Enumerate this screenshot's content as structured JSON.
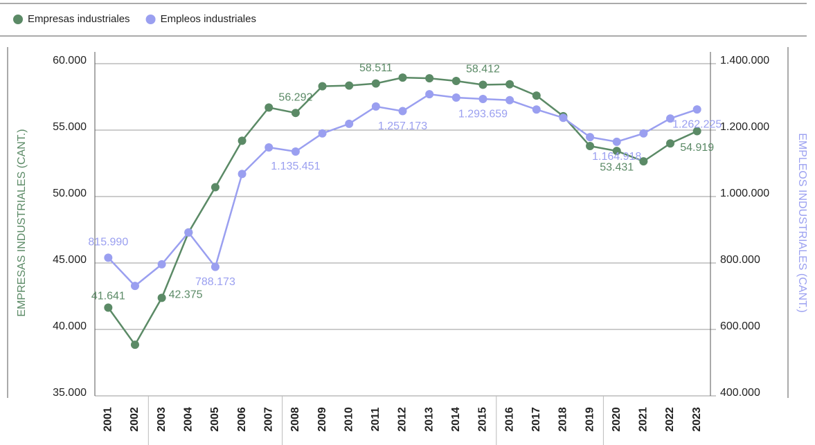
{
  "chart_data": {
    "type": "line",
    "categories": [
      "2001",
      "2002",
      "2003",
      "2004",
      "2005",
      "2006",
      "2007",
      "2008",
      "2009",
      "2010",
      "2011",
      "2012",
      "2013",
      "2014",
      "2015",
      "2016",
      "2017",
      "2018",
      "2019",
      "2020",
      "2021",
      "2022",
      "2023"
    ],
    "ylabel": "EMPRESAS INDUSTRIALES (CANT.)",
    "y2label": "EMPLEOS INDUSTRIALES (CANT.)",
    "ylim": [
      35000,
      60000
    ],
    "yticks": [
      {
        "value": 35000,
        "label": "35.000"
      },
      {
        "value": 40000,
        "label": "40.000"
      },
      {
        "value": 45000,
        "label": "45.000"
      },
      {
        "value": 50000,
        "label": "50.000"
      },
      {
        "value": 55000,
        "label": "55.000"
      },
      {
        "value": 60000,
        "label": "60.000"
      }
    ],
    "y2lim": [
      400000,
      1400000
    ],
    "y2ticks": [
      {
        "value": 400000,
        "label": "400.000"
      },
      {
        "value": 600000,
        "label": "600.000"
      },
      {
        "value": 800000,
        "label": "800.000"
      },
      {
        "value": 1000000,
        "label": "1.000.000"
      },
      {
        "value": 1200000,
        "label": "1.200.000"
      },
      {
        "value": 1400000,
        "label": "1.400.000"
      }
    ],
    "grid": true,
    "legend": "top-left",
    "series": [
      {
        "name": "Empresas industriales",
        "color": "#5b8a66",
        "axis": "y",
        "values": [
          41641,
          38850,
          42375,
          47300,
          50700,
          54200,
          56700,
          56292,
          58300,
          58350,
          58511,
          58950,
          58900,
          58700,
          58412,
          58450,
          57600,
          56050,
          53800,
          53431,
          52650,
          54000,
          54919
        ],
        "value_labels": [
          "41.641",
          null,
          "42.375",
          null,
          null,
          null,
          null,
          "56.292",
          null,
          null,
          "58.511",
          null,
          null,
          null,
          "58.412",
          null,
          null,
          null,
          null,
          "53.431",
          null,
          null,
          "54.919"
        ]
      },
      {
        "name": "Empleos industriales",
        "color": "#9a9ff0",
        "axis": "y2",
        "values": [
          815990,
          731000,
          796000,
          892000,
          788173,
          1068000,
          1148000,
          1135451,
          1190000,
          1219000,
          1271000,
          1257173,
          1308000,
          1298000,
          1293659,
          1290000,
          1262000,
          1237000,
          1179000,
          1164918,
          1190000,
          1235000,
          1262225
        ],
        "value_labels": [
          "815.990",
          null,
          null,
          null,
          "788.173",
          null,
          null,
          "1.135.451",
          null,
          null,
          null,
          "1.257.173",
          null,
          null,
          "1.293.659",
          null,
          null,
          null,
          null,
          "1.164.918",
          null,
          null,
          "1.262.225"
        ]
      }
    ]
  }
}
